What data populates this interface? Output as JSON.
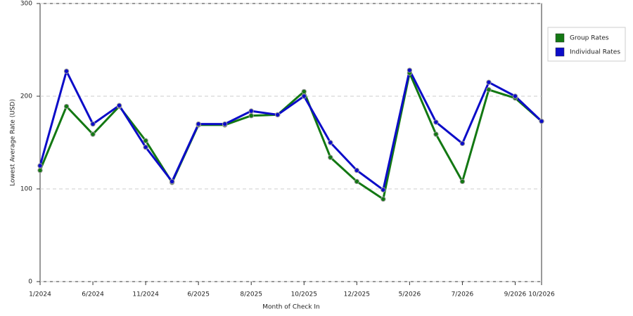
{
  "chart_data": {
    "type": "line",
    "x_label": "Month of Check In",
    "y_label": "Lowest Average Rate (USD)",
    "categories": [
      "1/2024",
      null,
      "6/2024",
      null,
      "11/2024",
      null,
      "6/2025",
      null,
      "8/2025",
      null,
      "10/2025",
      null,
      "12/2025",
      null,
      "5/2026",
      null,
      "7/2026",
      null,
      "9/2026",
      "10/2026"
    ],
    "series": [
      {
        "name": "Group Rates",
        "color": "#137813",
        "values": [
          120,
          189,
          159,
          189,
          152,
          107,
          169,
          169,
          179,
          180,
          205,
          134,
          108,
          89,
          225,
          159,
          108,
          207,
          198,
          173
        ]
      },
      {
        "name": "Individual Rates",
        "color": "#0c0cc8",
        "values": [
          125,
          227,
          170,
          190,
          145,
          108,
          170,
          170,
          184,
          180,
          200,
          150,
          120,
          99,
          228,
          172,
          149,
          215,
          200,
          173
        ]
      }
    ],
    "ylim": [
      0,
      300
    ],
    "yticks": [
      0,
      100,
      200,
      300
    ],
    "grid": true,
    "legend": "right"
  }
}
